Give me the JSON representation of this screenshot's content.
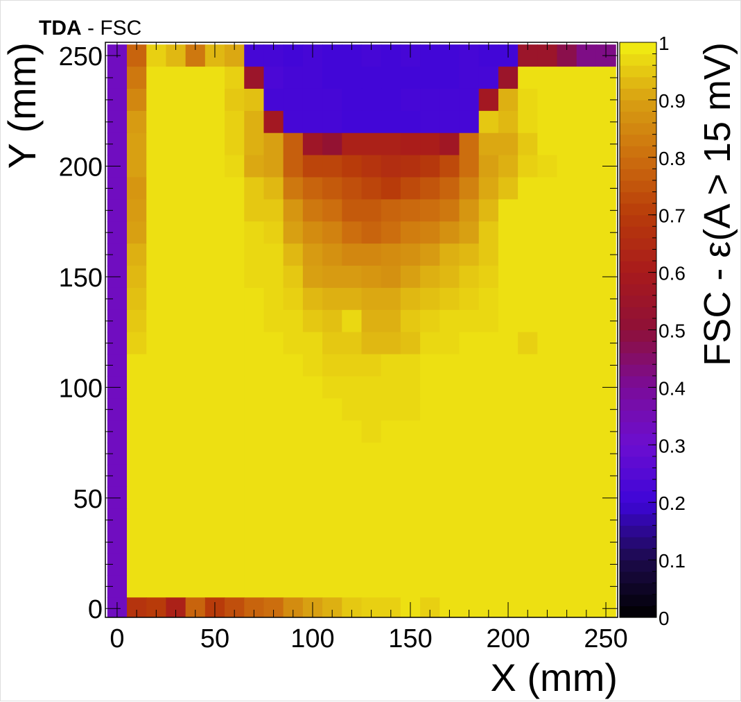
{
  "chart_data": {
    "type": "heatmap",
    "title_bold": "TDA",
    "title_rest": " - FSC",
    "xlabel": "X (mm)",
    "ylabel": "Y (mm)",
    "zlabel": "FSC - ε(A > 15 mV)",
    "xlim": [
      -6,
      256
    ],
    "ylim": [
      -4,
      256
    ],
    "zlim": [
      0,
      1
    ],
    "x_ticks": [
      "0",
      "50",
      "100",
      "150",
      "200",
      "250"
    ],
    "y_ticks": [
      "0",
      "50",
      "100",
      "150",
      "200",
      "250"
    ],
    "z_ticks": [
      "0",
      "0.1",
      "0.2",
      "0.3",
      "0.4",
      "0.5",
      "0.6",
      "0.7",
      "0.8",
      "0.9",
      "1"
    ],
    "bin_size_mm": 10,
    "x_bin_centers": [
      0,
      10,
      20,
      30,
      40,
      50,
      60,
      70,
      80,
      90,
      100,
      110,
      120,
      130,
      140,
      150,
      160,
      170,
      180,
      190,
      200,
      210,
      220,
      230,
      240,
      250
    ],
    "y_bin_centers": [
      250,
      240,
      230,
      220,
      210,
      200,
      190,
      180,
      170,
      160,
      150,
      140,
      130,
      120,
      110,
      100,
      90,
      80,
      70,
      60,
      50,
      40,
      30,
      20,
      10,
      0
    ],
    "z_values": [
      [
        0.33,
        0.78,
        0.96,
        0.93,
        0.82,
        0.93,
        0.91,
        0.22,
        0.22,
        0.21,
        0.22,
        0.21,
        0.21,
        0.22,
        0.21,
        0.22,
        0.21,
        0.21,
        0.22,
        0.21,
        0.21,
        0.55,
        0.55,
        0.48,
        0.42,
        0.42
      ],
      [
        0.33,
        0.82,
        0.98,
        0.98,
        0.98,
        0.98,
        0.96,
        0.55,
        0.23,
        0.22,
        0.22,
        0.21,
        0.21,
        0.21,
        0.21,
        0.21,
        0.21,
        0.21,
        0.22,
        0.22,
        0.55,
        0.98,
        0.98,
        0.98,
        0.98,
        0.98
      ],
      [
        0.33,
        0.85,
        0.98,
        0.98,
        0.98,
        0.98,
        0.95,
        0.94,
        0.22,
        0.22,
        0.22,
        0.22,
        0.21,
        0.21,
        0.21,
        0.22,
        0.22,
        0.22,
        0.22,
        0.58,
        0.92,
        0.97,
        0.98,
        0.98,
        0.98,
        0.98
      ],
      [
        0.33,
        0.89,
        0.98,
        0.98,
        0.98,
        0.98,
        0.96,
        0.92,
        0.58,
        0.22,
        0.22,
        0.22,
        0.21,
        0.21,
        0.21,
        0.21,
        0.22,
        0.22,
        0.22,
        0.95,
        0.93,
        0.97,
        0.98,
        0.98,
        0.98,
        0.98
      ],
      [
        0.33,
        0.9,
        0.98,
        0.98,
        0.98,
        0.98,
        0.96,
        0.92,
        0.9,
        0.77,
        0.56,
        0.52,
        0.62,
        0.62,
        0.62,
        0.61,
        0.61,
        0.57,
        0.8,
        0.91,
        0.91,
        0.95,
        0.98,
        0.98,
        0.98,
        0.98
      ],
      [
        0.33,
        0.9,
        0.98,
        0.98,
        0.98,
        0.98,
        0.97,
        0.91,
        0.9,
        0.77,
        0.72,
        0.72,
        0.7,
        0.68,
        0.66,
        0.67,
        0.69,
        0.73,
        0.8,
        0.9,
        0.92,
        0.96,
        0.97,
        0.98,
        0.98,
        0.98
      ],
      [
        0.33,
        0.88,
        0.98,
        0.98,
        0.98,
        0.98,
        0.98,
        0.95,
        0.93,
        0.82,
        0.78,
        0.76,
        0.74,
        0.72,
        0.7,
        0.73,
        0.75,
        0.78,
        0.84,
        0.91,
        0.94,
        0.98,
        0.98,
        0.98,
        0.98,
        0.98
      ],
      [
        0.33,
        0.89,
        0.98,
        0.98,
        0.98,
        0.98,
        0.98,
        0.95,
        0.95,
        0.88,
        0.82,
        0.8,
        0.76,
        0.76,
        0.78,
        0.79,
        0.8,
        0.82,
        0.88,
        0.93,
        0.98,
        0.98,
        0.98,
        0.98,
        0.98,
        0.98
      ],
      [
        0.33,
        0.9,
        0.98,
        0.98,
        0.98,
        0.98,
        0.98,
        0.97,
        0.96,
        0.9,
        0.86,
        0.84,
        0.8,
        0.78,
        0.8,
        0.83,
        0.84,
        0.87,
        0.9,
        0.95,
        0.98,
        0.98,
        0.98,
        0.98,
        0.98,
        0.98
      ],
      [
        0.33,
        0.92,
        0.98,
        0.98,
        0.98,
        0.98,
        0.98,
        0.97,
        0.97,
        0.93,
        0.89,
        0.87,
        0.85,
        0.85,
        0.86,
        0.87,
        0.89,
        0.92,
        0.93,
        0.95,
        0.98,
        0.98,
        0.98,
        0.98,
        0.98,
        0.98
      ],
      [
        0.33,
        0.93,
        0.98,
        0.98,
        0.98,
        0.98,
        0.98,
        0.97,
        0.97,
        0.95,
        0.9,
        0.89,
        0.89,
        0.88,
        0.87,
        0.9,
        0.92,
        0.93,
        0.95,
        0.96,
        0.98,
        0.98,
        0.98,
        0.98,
        0.98,
        0.98
      ],
      [
        0.33,
        0.94,
        0.98,
        0.98,
        0.98,
        0.98,
        0.98,
        0.98,
        0.97,
        0.96,
        0.93,
        0.92,
        0.92,
        0.91,
        0.91,
        0.93,
        0.94,
        0.95,
        0.96,
        0.97,
        0.98,
        0.98,
        0.98,
        0.98,
        0.98,
        0.98
      ],
      [
        0.33,
        0.95,
        0.98,
        0.98,
        0.98,
        0.98,
        0.98,
        0.98,
        0.97,
        0.97,
        0.95,
        0.94,
        0.97,
        0.92,
        0.92,
        0.95,
        0.96,
        0.97,
        0.97,
        0.97,
        0.98,
        0.98,
        0.98,
        0.98,
        0.98,
        0.98
      ],
      [
        0.33,
        0.96,
        0.98,
        0.98,
        0.98,
        0.98,
        0.98,
        0.98,
        0.98,
        0.97,
        0.97,
        0.95,
        0.95,
        0.93,
        0.93,
        0.94,
        0.97,
        0.97,
        0.98,
        0.98,
        0.98,
        0.96,
        0.98,
        0.98,
        0.98,
        0.98
      ],
      [
        0.33,
        0.98,
        0.98,
        0.98,
        0.98,
        0.98,
        0.98,
        0.98,
        0.98,
        0.98,
        0.97,
        0.96,
        0.96,
        0.96,
        0.97,
        0.97,
        0.98,
        0.98,
        0.98,
        0.98,
        0.98,
        0.98,
        0.98,
        0.98,
        0.98,
        0.98
      ],
      [
        0.33,
        0.98,
        0.98,
        0.98,
        0.98,
        0.98,
        0.98,
        0.98,
        0.98,
        0.98,
        0.98,
        0.97,
        0.97,
        0.97,
        0.97,
        0.97,
        0.98,
        0.98,
        0.98,
        0.98,
        0.98,
        0.98,
        0.98,
        0.98,
        0.98,
        0.98
      ],
      [
        0.33,
        0.98,
        0.98,
        0.98,
        0.98,
        0.98,
        0.98,
        0.98,
        0.98,
        0.98,
        0.98,
        0.98,
        0.97,
        0.97,
        0.97,
        0.97,
        0.98,
        0.98,
        0.98,
        0.98,
        0.98,
        0.98,
        0.98,
        0.98,
        0.98,
        0.98
      ],
      [
        0.33,
        0.98,
        0.98,
        0.98,
        0.98,
        0.98,
        0.98,
        0.98,
        0.98,
        0.98,
        0.98,
        0.98,
        0.98,
        0.97,
        0.98,
        0.98,
        0.98,
        0.98,
        0.98,
        0.98,
        0.98,
        0.98,
        0.98,
        0.98,
        0.98,
        0.98
      ],
      [
        0.33,
        0.98,
        0.98,
        0.98,
        0.98,
        0.98,
        0.98,
        0.98,
        0.98,
        0.98,
        0.98,
        0.98,
        0.98,
        0.98,
        0.98,
        0.98,
        0.98,
        0.98,
        0.98,
        0.98,
        0.98,
        0.98,
        0.98,
        0.98,
        0.98,
        0.98
      ],
      [
        0.33,
        0.98,
        0.98,
        0.98,
        0.98,
        0.98,
        0.98,
        0.98,
        0.98,
        0.98,
        0.98,
        0.98,
        0.98,
        0.98,
        0.98,
        0.98,
        0.98,
        0.98,
        0.98,
        0.98,
        0.98,
        0.98,
        0.98,
        0.98,
        0.98,
        0.98
      ],
      [
        0.33,
        0.98,
        0.98,
        0.98,
        0.98,
        0.98,
        0.98,
        0.98,
        0.98,
        0.98,
        0.98,
        0.98,
        0.98,
        0.98,
        0.98,
        0.98,
        0.98,
        0.98,
        0.98,
        0.98,
        0.98,
        0.98,
        0.98,
        0.98,
        0.98,
        0.98
      ],
      [
        0.33,
        0.98,
        0.98,
        0.98,
        0.98,
        0.98,
        0.98,
        0.98,
        0.98,
        0.98,
        0.98,
        0.98,
        0.98,
        0.98,
        0.98,
        0.98,
        0.98,
        0.98,
        0.98,
        0.98,
        0.98,
        0.98,
        0.98,
        0.98,
        0.98,
        0.98
      ],
      [
        0.33,
        0.98,
        0.98,
        0.98,
        0.98,
        0.98,
        0.98,
        0.98,
        0.98,
        0.98,
        0.98,
        0.98,
        0.98,
        0.98,
        0.98,
        0.98,
        0.98,
        0.98,
        0.98,
        0.98,
        0.98,
        0.98,
        0.98,
        0.98,
        0.98,
        0.98
      ],
      [
        0.33,
        0.98,
        0.98,
        0.98,
        0.98,
        0.98,
        0.98,
        0.98,
        0.98,
        0.98,
        0.98,
        0.98,
        0.98,
        0.98,
        0.98,
        0.98,
        0.98,
        0.98,
        0.98,
        0.98,
        0.98,
        0.98,
        0.98,
        0.98,
        0.98,
        0.98
      ],
      [
        0.33,
        0.98,
        0.98,
        0.98,
        0.98,
        0.98,
        0.98,
        0.98,
        0.98,
        0.98,
        0.98,
        0.98,
        0.98,
        0.98,
        0.98,
        0.98,
        0.98,
        0.98,
        0.98,
        0.98,
        0.98,
        0.98,
        0.98,
        0.98,
        0.98,
        0.98
      ],
      [
        0.33,
        0.68,
        0.7,
        0.62,
        0.78,
        0.7,
        0.74,
        0.78,
        0.8,
        0.86,
        0.9,
        0.92,
        0.95,
        0.96,
        0.96,
        0.98,
        0.96,
        0.98,
        0.98,
        0.98,
        0.98,
        0.98,
        0.98,
        0.98,
        0.98,
        0.98
      ]
    ],
    "palette": {
      "stops": [
        0,
        0.1,
        0.2,
        0.3,
        0.4,
        0.5,
        0.6,
        0.7,
        0.8,
        0.9,
        1
      ],
      "colors": [
        "#000000",
        "#1c0a4a",
        "#3d05d8",
        "#6c0ed0",
        "#7a0c9a",
        "#8e1038",
        "#a81a1c",
        "#b83b0a",
        "#cc6e0e",
        "#d8a012",
        "#f2f012"
      ]
    },
    "frame_color": "#000000",
    "grid": false,
    "legend": "color bar on the right"
  }
}
